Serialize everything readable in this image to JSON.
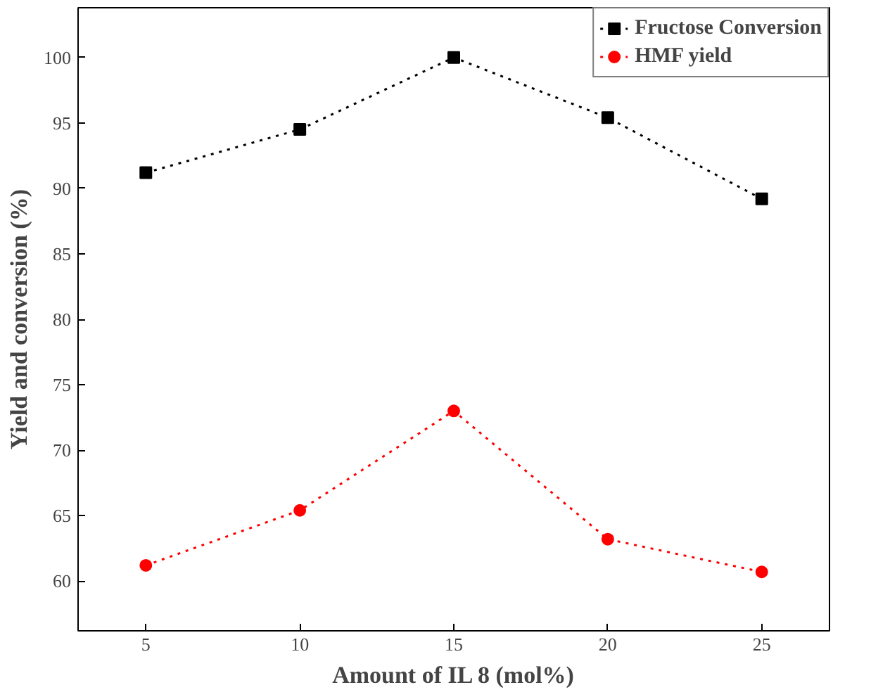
{
  "chart_data": {
    "type": "line",
    "xlabel": "Amount of IL 8 (mol%)",
    "ylabel": "Yield and conversion (%)",
    "x": [
      5,
      10,
      15,
      20,
      25
    ],
    "series": [
      {
        "name": "Fructose Conversion",
        "color": "#000000",
        "marker": "square",
        "values": [
          91.2,
          94.5,
          100,
          95.4,
          89.2
        ]
      },
      {
        "name": "HMF yield",
        "color": "#ff0000",
        "marker": "circle",
        "values": [
          61.2,
          65.4,
          73,
          63.2,
          60.7
        ]
      }
    ],
    "xlim": [
      2.8,
      27.2
    ],
    "xticks": [
      5,
      10,
      15,
      20,
      25
    ],
    "ylim": [
      56.2,
      103.8
    ],
    "yticks": [
      60,
      65,
      70,
      75,
      80,
      85,
      90,
      95,
      100
    ],
    "line_style": "dotted",
    "grid": false,
    "legend": "top right"
  }
}
